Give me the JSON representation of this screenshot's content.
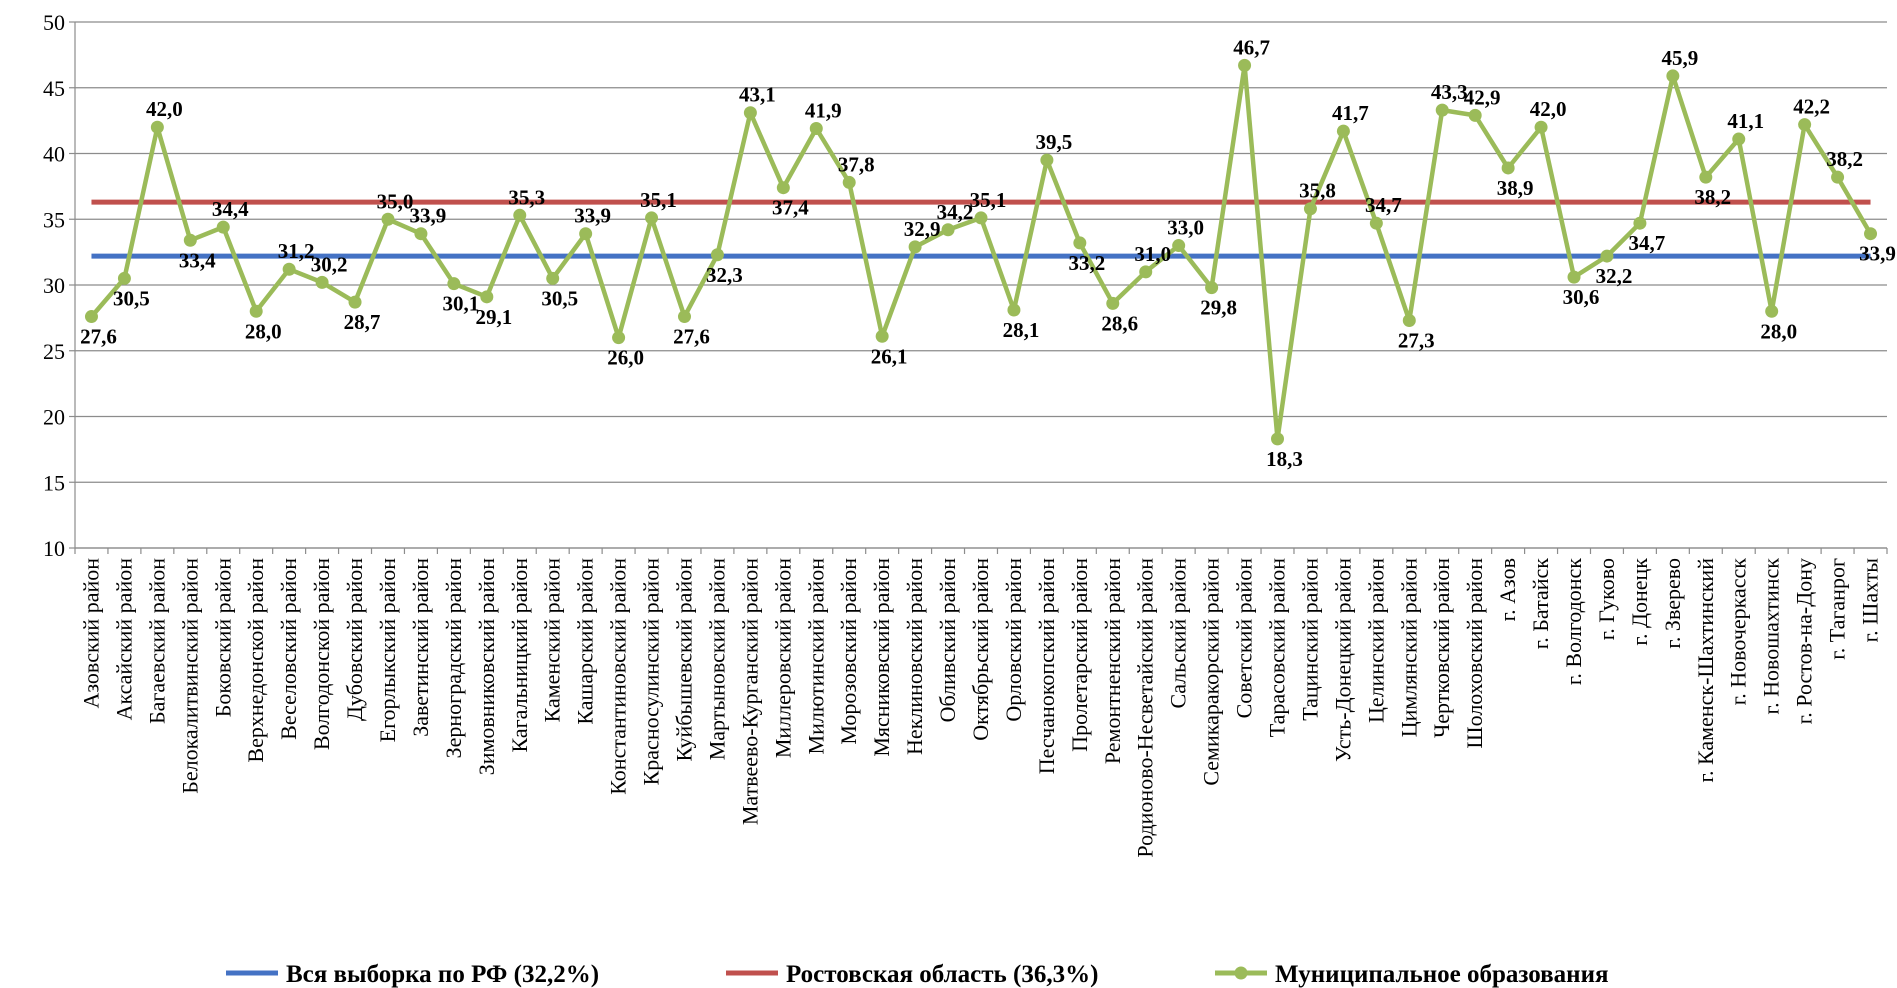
{
  "chart_data": {
    "type": "line",
    "title": "",
    "xlabel": "",
    "ylabel": "",
    "ylim": [
      10,
      50
    ],
    "yticks": [
      10,
      15,
      20,
      25,
      30,
      35,
      40,
      45,
      50
    ],
    "ytick_labels": [
      "10",
      "15",
      "20",
      "25",
      "30",
      "35",
      "40",
      "45",
      "50"
    ],
    "grid": true,
    "legend_position": "bottom",
    "categories": [
      "Азовский район",
      "Аксайский район",
      "Багаевский район",
      "Белокалитвинский район",
      "Боковский район",
      "Верхнедонской район",
      "Веселовский район",
      "Волгодонской район",
      "Дубовский район",
      "Егорлыкский район",
      "Заветинский район",
      "Зерноградский район",
      "Зимовниковский район",
      "Кагальницкий район",
      "Каменский район",
      "Кашарский район",
      "Константиновский район",
      "Красносулинский район",
      "Куйбышевский район",
      "Мартыновский район",
      "Матвеево-Курганский район",
      "Миллеровский район",
      "Милютинский район",
      "Морозовский район",
      "Мясниковский район",
      "Неклиновский район",
      "Обливский район",
      "Октябрьский район",
      "Орловский район",
      "Песчанокопский район",
      "Пролетарский район",
      "Ремонтненский район",
      "Родионово-Несветайский район",
      "Сальский район",
      "Семикаракорский район",
      "Советский район",
      "Тарасовский район",
      "Тацинский район",
      "Усть-Донецкий район",
      "Целинский район",
      "Цимлянский район",
      "Чертковский район",
      "Шолоховский район",
      "г. Азов",
      "г. Батайск",
      "г. Волгодонск",
      "г. Гуково",
      "г. Донецк",
      "г. Зверево",
      "г. Каменск-Шахтинский",
      "г. Новочеркасск",
      "г. Новошахтинск",
      "г. Ростов-на-Дону",
      "г. Таганрог",
      "г. Шахты"
    ],
    "series": [
      {
        "name": "Вся выборка по РФ (32,2%)",
        "color": "#4472C4",
        "constant": 32.2
      },
      {
        "name": "Ростовская область (36,3%)",
        "color": "#C0504D",
        "constant": 36.3
      },
      {
        "name": "Муниципальное образования",
        "color": "#9BBB59",
        "values": [
          27.6,
          30.5,
          42.0,
          33.4,
          34.4,
          28.0,
          31.2,
          30.2,
          28.7,
          35.0,
          33.9,
          30.1,
          29.1,
          35.3,
          30.5,
          33.9,
          26.0,
          35.1,
          27.6,
          32.3,
          43.1,
          37.4,
          41.9,
          37.8,
          26.1,
          32.9,
          34.2,
          35.1,
          28.1,
          39.5,
          33.2,
          28.6,
          31.0,
          33.0,
          29.8,
          46.7,
          18.3,
          35.8,
          41.7,
          34.7,
          27.3,
          43.3,
          42.9,
          38.9,
          42.0,
          30.6,
          32.2,
          34.7,
          45.9,
          38.2,
          41.1,
          28.0,
          42.2,
          38.2,
          33.9
        ],
        "labels": [
          "27,6",
          "30,5",
          "42,0",
          "33,4",
          "34,4",
          "28,0",
          "31,2",
          "30,2",
          "28,7",
          "35,0",
          "33,9",
          "30,1",
          "29,1",
          "35,3",
          "30,5",
          "33,9",
          "26,0",
          "35,1",
          "27,6",
          "32,3",
          "43,1",
          "37,4",
          "41,9",
          "37,8",
          "26,1",
          "32,9",
          "34,2",
          "35,1",
          "28,1",
          "39,5",
          "33,2",
          "28,6",
          "31,0",
          "33,0",
          "29,8",
          "46,7",
          "18,3",
          "35,8",
          "41,7",
          "34,7",
          "27,3",
          "43,3",
          "42,9",
          "38,9",
          "42,0",
          "30,6",
          "32,2",
          "34,7",
          "45,9",
          "38,2",
          "41,1",
          "28,0",
          "42,2",
          "38,2",
          "33,9"
        ]
      }
    ]
  }
}
